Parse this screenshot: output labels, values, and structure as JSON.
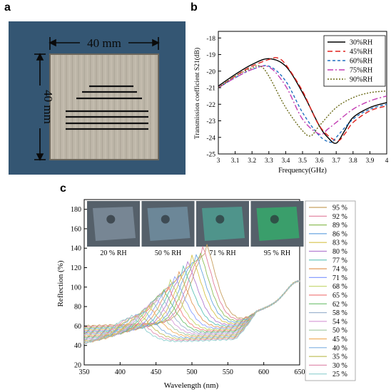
{
  "panels": {
    "a": "a",
    "b": "b",
    "c": "c"
  },
  "photo": {
    "width_label": "40 mm",
    "height_label": "40 mm",
    "colors": {
      "background": "#2e4f6b",
      "plate": "#bdb6a8",
      "lines": "#111111",
      "dimension": "#0a0a0a"
    }
  },
  "chart_data": [
    {
      "type": "line",
      "title": "",
      "xlabel": "Frequency(GHz)",
      "ylabel": "Transmission coefficient S21(dB)",
      "xlim": [
        3,
        4
      ],
      "ylim": [
        -25,
        -17.6
      ],
      "xticks": [
        "3",
        "3.1",
        "3.2",
        "3.3",
        "3.4",
        "3.5",
        "3.6",
        "3.7",
        "3.8",
        "3.9",
        "4"
      ],
      "yticks": [
        "-25",
        "-24",
        "-23",
        "-22",
        "-21",
        "-20",
        "-19",
        "-18"
      ],
      "legend_position": "top-right",
      "series": [
        {
          "name": "30%RH",
          "color": "#000000",
          "dash": "",
          "x": [
            3,
            3.1,
            3.2,
            3.3,
            3.4,
            3.5,
            3.6,
            3.65,
            3.7,
            3.75,
            3.8,
            3.9,
            4
          ],
          "y": [
            -20.9,
            -20.2,
            -19.6,
            -19.25,
            -19.7,
            -21.3,
            -23.3,
            -24.0,
            -24.35,
            -23.6,
            -22.8,
            -22.2,
            -21.9
          ]
        },
        {
          "name": "45%RH",
          "color": "#e0201b",
          "dash": "7 4",
          "x": [
            3,
            3.1,
            3.2,
            3.3,
            3.35,
            3.4,
            3.5,
            3.6,
            3.7,
            3.75,
            3.8,
            3.9,
            4
          ],
          "y": [
            -21.0,
            -20.3,
            -19.7,
            -19.3,
            -19.2,
            -19.6,
            -21.2,
            -23.3,
            -24.2,
            -23.8,
            -23.1,
            -22.4,
            -22.1
          ]
        },
        {
          "name": "60%RH",
          "color": "#1f6fc0",
          "dash": "4 3",
          "x": [
            3,
            3.1,
            3.2,
            3.3,
            3.4,
            3.5,
            3.6,
            3.67,
            3.7,
            3.8,
            3.9,
            4
          ],
          "y": [
            -21.0,
            -20.4,
            -19.9,
            -19.7,
            -20.6,
            -22.5,
            -23.9,
            -24.3,
            -24.0,
            -22.9,
            -22.3,
            -22.0
          ]
        },
        {
          "name": "75%RH",
          "color": "#c33cb3",
          "dash": "8 3 2 3",
          "x": [
            3,
            3.1,
            3.2,
            3.3,
            3.4,
            3.5,
            3.6,
            3.65,
            3.7,
            3.8,
            3.9,
            4
          ],
          "y": [
            -21.0,
            -20.4,
            -19.9,
            -19.75,
            -20.9,
            -22.9,
            -23.8,
            -23.5,
            -23.1,
            -22.3,
            -21.8,
            -21.5
          ]
        },
        {
          "name": "90%RH",
          "color": "#6b6b1a",
          "dash": "2 2",
          "x": [
            3,
            3.1,
            3.2,
            3.25,
            3.3,
            3.4,
            3.5,
            3.55,
            3.6,
            3.7,
            3.8,
            3.9,
            4
          ],
          "y": [
            -21.0,
            -20.3,
            -19.8,
            -19.7,
            -20.3,
            -22.2,
            -23.6,
            -23.9,
            -23.3,
            -22.2,
            -21.6,
            -21.3,
            -21.2
          ]
        }
      ]
    },
    {
      "type": "line",
      "title": "",
      "xlabel": "Wavelength (nm)",
      "ylabel": "Reflection (%)",
      "xlim": [
        350,
        650
      ],
      "ylim": [
        20,
        190
      ],
      "xticks": [
        "350",
        "400",
        "450",
        "500",
        "550",
        "600",
        "650"
      ],
      "yticks": [
        "20",
        "40",
        "60",
        "80",
        "100",
        "120",
        "140",
        "160",
        "180"
      ],
      "legend_position": "right",
      "series_names": [
        "95 %",
        "92 %",
        "89 %",
        "86 %",
        "83 %",
        "80 %",
        "77 %",
        "74 %",
        "71 %",
        "68 %",
        "65 %",
        "62 %",
        "58 %",
        "54 %",
        "50 %",
        "45 %",
        "40 %",
        "35 %",
        "30 %",
        "25 %"
      ],
      "series_colors": [
        "#c8a060",
        "#e07c9a",
        "#8fbf5a",
        "#6aa6e0",
        "#d6c24a",
        "#b37fd1",
        "#5ec1b6",
        "#e39a5a",
        "#8aa0ff",
        "#c2d66a",
        "#f08080",
        "#70c070",
        "#9fb6d0",
        "#d9a0d9",
        "#a0c8a0",
        "#f0b060",
        "#80b0e0",
        "#c0c060",
        "#e090b0",
        "#90d0d0"
      ],
      "peak_wavelengths": [
        520,
        515,
        510,
        505,
        500,
        494,
        488,
        482,
        476,
        470,
        465,
        460,
        455,
        450,
        445,
        440,
        432,
        426,
        420,
        415
      ],
      "peak_values": [
        135,
        132,
        129,
        126,
        123,
        118,
        113,
        108,
        104,
        100,
        96,
        92,
        88,
        84,
        80,
        76,
        73,
        70,
        69,
        68
      ],
      "insets": [
        {
          "label": "20 % RH",
          "color": "#7b8b99"
        },
        {
          "label": "50 % RH",
          "color": "#6f8c9d"
        },
        {
          "label": "71 % RH",
          "color": "#4f9a8f"
        },
        {
          "label": "95 % RH",
          "color": "#37a56c"
        }
      ]
    }
  ]
}
